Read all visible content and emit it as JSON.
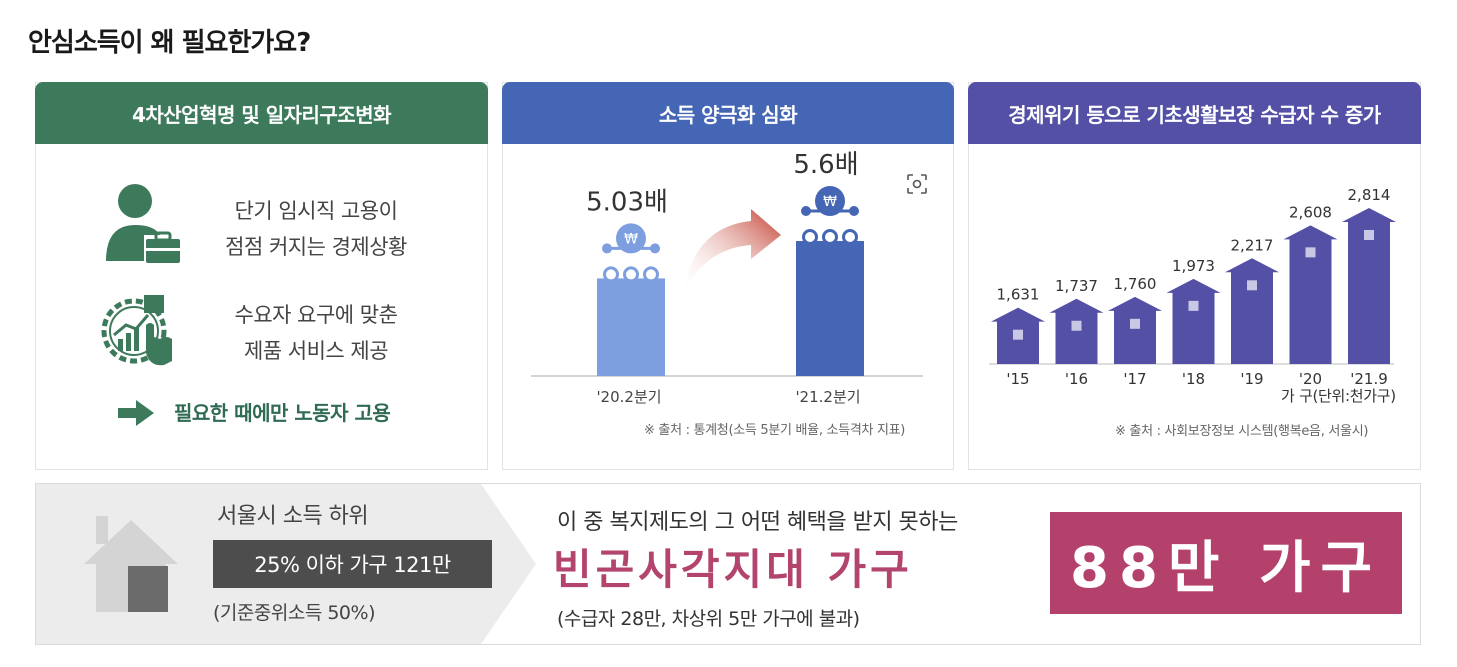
{
  "page_title": "안심소득이 왜 필요한가요?",
  "panel1": {
    "header": "4차산업혁명 및 일자리구조변화",
    "item1": [
      "단기 임시직 고용이",
      "점점 커지는  경제상황"
    ],
    "item2": [
      "수요자 요구에 맞춘",
      "제품 서비스 제공"
    ],
    "conclusion": "필요한 때에만 노동자 고용",
    "icons": [
      "worker-briefcase-icon",
      "gear-chart-hand-icon",
      "right-arrow-icon"
    ]
  },
  "panel2": {
    "header": "소득 양극화 심화",
    "source": "※ 출처 : 통계청(소득 5분기 배율, 소득격차 지표)",
    "currency_symbol": "₩",
    "chart_data": {
      "type": "bar",
      "categories": [
        "'20.2분기",
        "'21.2분기"
      ],
      "values": [
        5.03,
        5.6
      ],
      "value_labels": [
        "5.03배",
        "5.6배"
      ],
      "colors": [
        "#7d9fe0",
        "#4466b5"
      ]
    }
  },
  "panel3": {
    "header": "경제위기 등으로 기초생활보장 수급자 수 증가",
    "unit_label": "가 구(단위:천가구)",
    "source": "※ 출처 : 사회보장정보 시스템(행복e음, 서울시)",
    "chart_data": {
      "type": "bar",
      "categories": [
        "'15",
        "'16",
        "'17",
        "'18",
        "'19",
        "'20",
        "'21.9"
      ],
      "values": [
        1631,
        1737,
        1760,
        1973,
        2217,
        2608,
        2814
      ],
      "value_labels": [
        "1,631",
        "1,737",
        "1,760",
        "1,973",
        "2,217",
        "2,608",
        "2,814"
      ],
      "color": "#5450a6"
    }
  },
  "bottom": {
    "title": "서울시 소득 하위",
    "box_text": "25% 이하 가구 121만",
    "note": "(기준중위소득 50%)",
    "line1": "이 중 복지제도의 그 어떤 혜택을 받지 못하는",
    "big": "빈곤사각지대 가구",
    "line3": "(수급자 28만, 차상위 5만 가구에 불과)",
    "badge": "88만 가구"
  }
}
